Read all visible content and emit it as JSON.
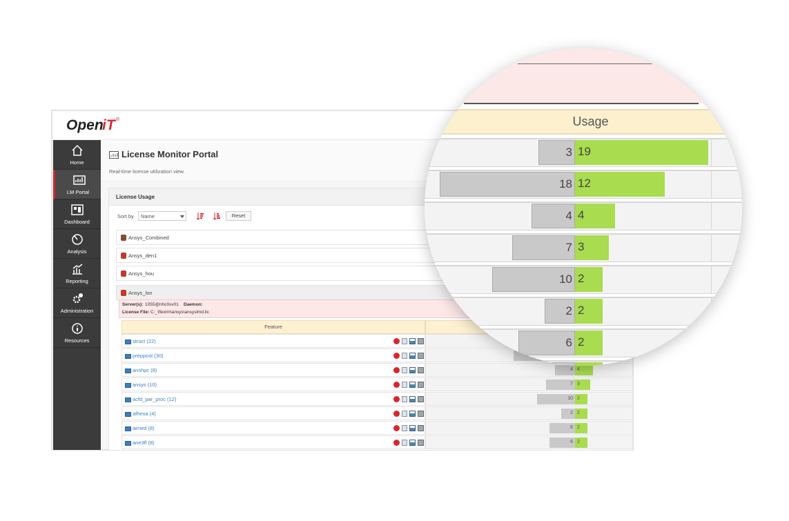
{
  "header": {
    "logo_open": "Open",
    "logo_it": "iT",
    "logo_mark": "®"
  },
  "sidebar": {
    "items": [
      "Home",
      "LM Portal",
      "Dashboard",
      "Analysis",
      "Reporting",
      "Administration",
      "Resources"
    ],
    "active": 1
  },
  "page": {
    "title": "License Monitor Portal",
    "subtitle": "Real-time license utilization view."
  },
  "panel": {
    "title": "License Usage",
    "sort_label": "Sort by",
    "sort_value": "Name",
    "reset": "Reset"
  },
  "groups": {
    "names": [
      "Ansys_Combined",
      "Ansys_den1",
      "Ansys_hou",
      "Ansys_lon"
    ],
    "expanded": 3
  },
  "server": {
    "servers_label": "Server(s):",
    "servers": "1055@nhc0sv01",
    "daemon_label": "Daemon:",
    "license_file_label": "License File:",
    "license_file": "C:_\\flexlm\\ansys\\ansyslmd.lic"
  },
  "table": {
    "columns": [
      "Feature",
      "Usage"
    ],
    "rows": [
      {
        "feature": "struct (22)",
        "other": 3,
        "mine": 19
      },
      {
        "feature": "preppost (30)",
        "other": 18,
        "mine": 12
      },
      {
        "feature": "anshpc (8)",
        "other": 4,
        "mine": 4
      },
      {
        "feature": "ansys (10)",
        "other": 7,
        "mine": 3
      },
      {
        "feature": "acfd_par_proc (12)",
        "other": 10,
        "mine": 2
      },
      {
        "feature": "afhexa (4)",
        "other": 2,
        "mine": 2
      },
      {
        "feature": "aimed (8)",
        "other": 6,
        "mine": 2
      },
      {
        "feature": "ane3fl (8)",
        "other": 6,
        "mine": 2
      }
    ]
  }
}
